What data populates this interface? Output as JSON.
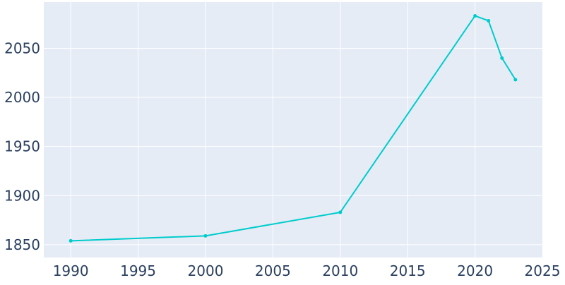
{
  "chart_data": {
    "type": "line",
    "title": "",
    "xlabel": "",
    "ylabel": "",
    "xlim": [
      1988,
      2025
    ],
    "ylim": [
      1837,
      2097
    ],
    "x_ticks": [
      1990,
      1995,
      2000,
      2005,
      2010,
      2015,
      2020,
      2025
    ],
    "y_ticks": [
      1850,
      1900,
      1950,
      2000,
      2050
    ],
    "grid": true,
    "colors": {
      "plot_bg": "#e5ecf6",
      "grid": "#ffffff",
      "line": "#00cccc",
      "text": "#2a3f5f"
    },
    "series": [
      {
        "x": [
          1990,
          2000,
          2010,
          2020,
          2021,
          2022,
          2023
        ],
        "y": [
          1854,
          1859,
          1883,
          2083,
          2078,
          2040,
          2018
        ]
      }
    ]
  }
}
